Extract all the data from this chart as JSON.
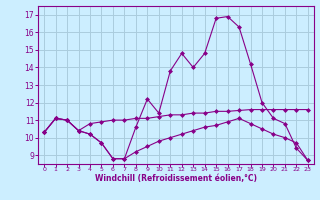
{
  "xlabel": "Windchill (Refroidissement éolien,°C)",
  "bg_color": "#cceeff",
  "grid_color": "#aaccdd",
  "line_color": "#880088",
  "xlim": [
    -0.5,
    23.5
  ],
  "ylim": [
    8.5,
    17.5
  ],
  "yticks": [
    9,
    10,
    11,
    12,
    13,
    14,
    15,
    16,
    17
  ],
  "xticks": [
    0,
    1,
    2,
    3,
    4,
    5,
    6,
    7,
    8,
    9,
    10,
    11,
    12,
    13,
    14,
    15,
    16,
    17,
    18,
    19,
    20,
    21,
    22,
    23
  ],
  "line1_x": [
    0,
    1,
    2,
    3,
    4,
    5,
    6,
    7,
    8,
    9,
    10,
    11,
    12,
    13,
    14,
    15,
    16,
    17,
    18,
    19,
    20,
    21,
    22,
    23
  ],
  "line1_y": [
    10.3,
    11.1,
    11.0,
    10.4,
    10.2,
    9.7,
    8.8,
    8.8,
    10.6,
    12.2,
    11.4,
    13.8,
    14.8,
    14.0,
    14.8,
    16.8,
    16.9,
    16.3,
    14.2,
    12.0,
    11.1,
    10.8,
    9.4,
    8.7
  ],
  "line2_x": [
    0,
    1,
    2,
    3,
    4,
    5,
    6,
    7,
    8,
    9,
    10,
    11,
    12,
    13,
    14,
    15,
    16,
    17,
    18,
    19,
    20,
    21,
    22,
    23
  ],
  "line2_y": [
    10.3,
    11.1,
    11.0,
    10.4,
    10.8,
    10.9,
    11.0,
    11.0,
    11.1,
    11.1,
    11.2,
    11.3,
    11.3,
    11.4,
    11.4,
    11.5,
    11.5,
    11.55,
    11.6,
    11.6,
    11.6,
    11.6,
    11.6,
    11.6
  ],
  "line3_x": [
    0,
    1,
    2,
    3,
    4,
    5,
    6,
    7,
    8,
    9,
    10,
    11,
    12,
    13,
    14,
    15,
    16,
    17,
    18,
    19,
    20,
    21,
    22,
    23
  ],
  "line3_y": [
    10.3,
    11.1,
    11.0,
    10.4,
    10.2,
    9.7,
    8.8,
    8.8,
    9.2,
    9.5,
    9.8,
    10.0,
    10.2,
    10.4,
    10.6,
    10.7,
    10.9,
    11.1,
    10.8,
    10.5,
    10.2,
    10.0,
    9.7,
    8.7
  ]
}
